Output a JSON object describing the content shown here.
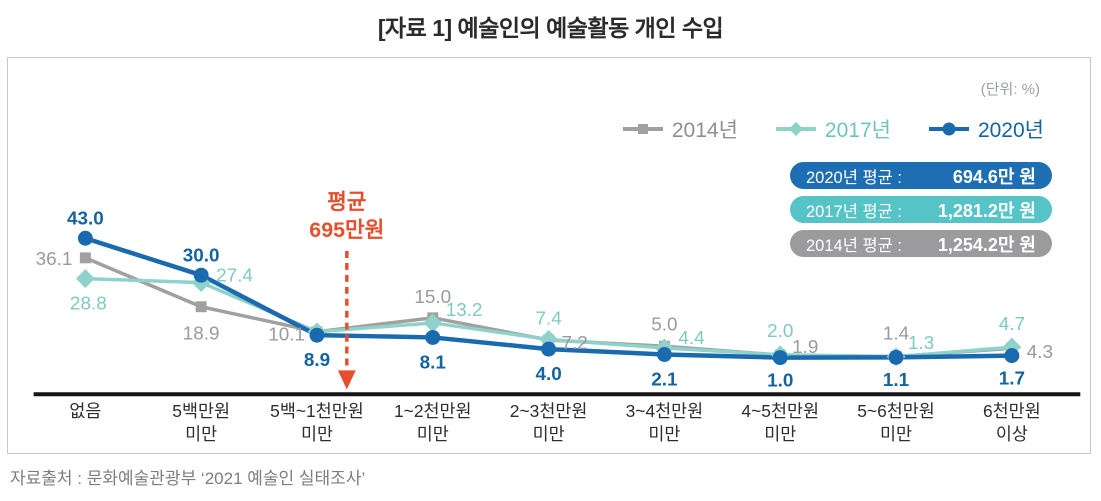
{
  "page": {
    "title": "[자료 1] 예술인의 예술활동 개인 수입",
    "unit_label": "(단위: %)",
    "source": "자료출처 : 문화예술관광부 ‘2021 예술인 실태조사’"
  },
  "legend": {
    "items": [
      {
        "label": "2014년",
        "marker": "square",
        "color": "#a0a0a0",
        "text_color": "#8f8f8f"
      },
      {
        "label": "2017년",
        "marker": "diamond",
        "color": "#8ed2ca",
        "text_color": "#6fc5bc"
      },
      {
        "label": "2020년",
        "marker": "circle",
        "color": "#1a6ab0",
        "text_color": "#15639f"
      }
    ]
  },
  "average_badges": [
    {
      "label": "2020년 평균 :",
      "value": "694.6만 원",
      "bg": "#1e6eb4"
    },
    {
      "label": "2017년 평균 :",
      "value": "1,281.2만 원",
      "bg": "#56c4c6"
    },
    {
      "label": "2014년 평균 :",
      "value": "1,254.2만 원",
      "bg": "#9b9b9d"
    }
  ],
  "annotation": {
    "line1": "평균",
    "line2": "695만원",
    "color": "#e4502e",
    "category_index": 2
  },
  "chart_data": {
    "type": "line",
    "unit": "%",
    "title": "[자료 1] 예술인의 예술활동 개인 수입",
    "categories": [
      [
        "없음"
      ],
      [
        "5백만원",
        "미만"
      ],
      [
        "5백~1천만원",
        "미만"
      ],
      [
        "1~2천만원",
        "미만"
      ],
      [
        "2~3천만원",
        "미만"
      ],
      [
        "3~4천만원",
        "미만"
      ],
      [
        "4~5천만원",
        "미만"
      ],
      [
        "5~6천만원",
        "미만"
      ],
      [
        "6천만원",
        "이상"
      ]
    ],
    "series": [
      {
        "name": "2014년",
        "marker": "square",
        "color": "#a0a0a0",
        "label_color": "#9b9b9b",
        "label_bold": false,
        "values": [
          36.1,
          18.9,
          10.1,
          15.0,
          7.2,
          5.0,
          1.9,
          1.4,
          4.3
        ],
        "labels": [
          "36.1",
          "18.9",
          "10.1",
          "15.0",
          "7.2",
          "5.0",
          "1.9",
          "1.4",
          "4.3"
        ]
      },
      {
        "name": "2017년",
        "marker": "diamond",
        "color": "#8ed2ca",
        "label_color": "#7ecac2",
        "label_bold": false,
        "values": [
          28.8,
          27.4,
          10.1,
          13.2,
          7.4,
          4.4,
          2.0,
          1.3,
          4.7
        ],
        "labels": [
          "28.8",
          "27.4",
          "",
          "13.2",
          "7.4",
          "4.4",
          "2.0",
          "1.3",
          "4.7"
        ]
      },
      {
        "name": "2020년",
        "marker": "circle",
        "color": "#1a6ab0",
        "label_color": "#15639f",
        "label_bold": true,
        "values": [
          43.0,
          30.0,
          8.9,
          8.1,
          4.0,
          2.1,
          1.0,
          1.1,
          1.7
        ],
        "labels": [
          "43.0",
          "30.0",
          "8.9",
          "8.1",
          "4.0",
          "2.1",
          "1.0",
          "1.1",
          "1.7"
        ]
      }
    ],
    "ylim": [
      0,
      50
    ],
    "grid": false,
    "legend_position": "top-right"
  }
}
